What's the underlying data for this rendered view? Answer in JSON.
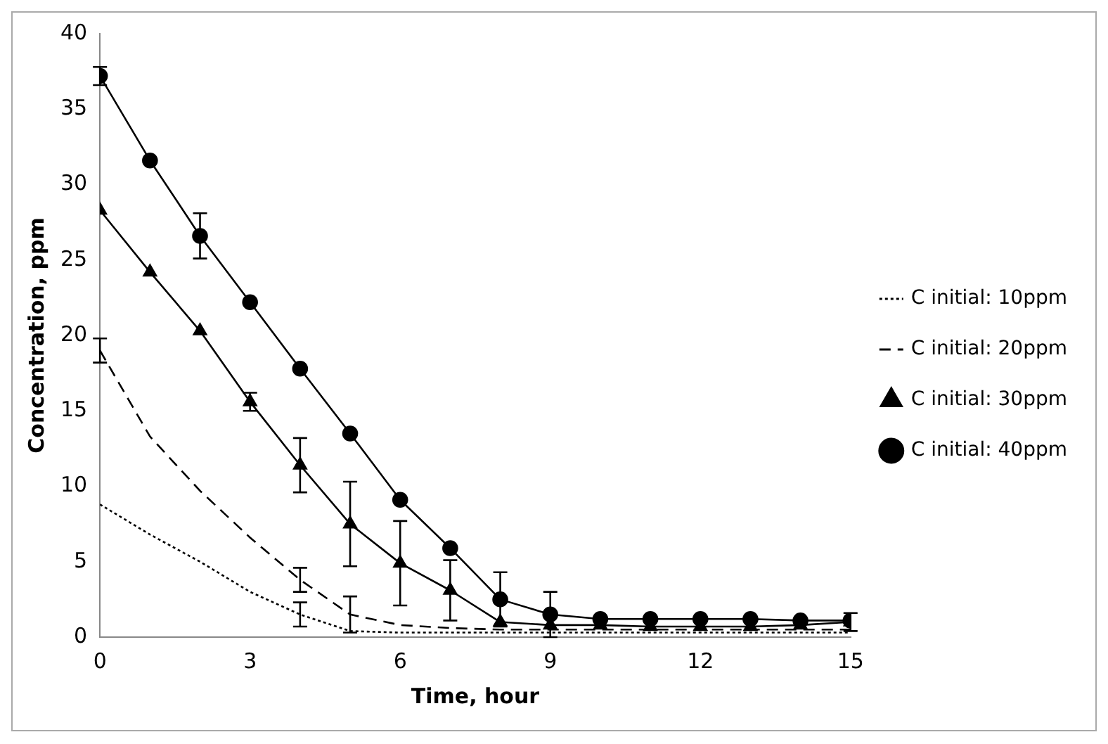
{
  "chart_data": {
    "type": "line",
    "xlabel": "Time, hour",
    "ylabel": "Concentration, ppm",
    "x": [
      0,
      1,
      2,
      3,
      4,
      5,
      6,
      7,
      8,
      9,
      10,
      11,
      12,
      13,
      14,
      15
    ],
    "xlim": [
      0,
      15
    ],
    "xticks": [
      0,
      3,
      6,
      9,
      12,
      15
    ],
    "ylim": [
      0,
      40
    ],
    "yticks": [
      0,
      5,
      10,
      15,
      20,
      25,
      30,
      35,
      40
    ],
    "grid": false,
    "legend": "right",
    "series": [
      {
        "name": "C initial: 10ppm",
        "color": "#000000",
        "marker": "none",
        "line_style": "dotted",
        "values": [
          8.8,
          6.8,
          5,
          3,
          1.5,
          0.4,
          0.3,
          0.3,
          0.3,
          0.3,
          0.3,
          0.3,
          0.3,
          0.3,
          0.3,
          0.3
        ],
        "errors": [
          null,
          null,
          null,
          null,
          0.8,
          null,
          null,
          null,
          null,
          null,
          null,
          null,
          null,
          null,
          null,
          null
        ]
      },
      {
        "name": "C initial: 20ppm",
        "color": "#000000",
        "marker": "none",
        "line_style": "dashed",
        "values": [
          19,
          13.3,
          9.7,
          6.6,
          3.8,
          1.5,
          0.8,
          0.6,
          0.5,
          0.5,
          0.5,
          0.5,
          0.5,
          0.5,
          0.5,
          0.5
        ],
        "errors": [
          0.8,
          null,
          null,
          null,
          0.8,
          1.2,
          null,
          null,
          null,
          null,
          null,
          null,
          null,
          null,
          null,
          null
        ]
      },
      {
        "name": "C initial: 30ppm",
        "color": "#000000",
        "marker": "triangle",
        "line_style": "solid",
        "values": [
          28.3,
          24.2,
          20.3,
          15.6,
          11.4,
          7.5,
          4.9,
          3.1,
          1,
          0.8,
          0.8,
          0.7,
          0.7,
          0.7,
          0.8,
          1
        ],
        "errors": [
          null,
          null,
          null,
          0.6,
          1.8,
          2.8,
          2.8,
          2,
          null,
          null,
          null,
          null,
          null,
          null,
          null,
          0.6
        ]
      },
      {
        "name": "C initial: 40ppm",
        "color": "#000000",
        "marker": "circle",
        "line_style": "solid",
        "values": [
          37.2,
          31.6,
          26.6,
          22.2,
          17.8,
          13.5,
          9.1,
          5.9,
          2.5,
          1.5,
          1.2,
          1.2,
          1.2,
          1.2,
          1.1,
          1.1
        ],
        "errors": [
          0.6,
          null,
          1.5,
          null,
          null,
          null,
          null,
          null,
          1.8,
          1.5,
          null,
          null,
          null,
          null,
          null,
          null
        ]
      }
    ]
  }
}
